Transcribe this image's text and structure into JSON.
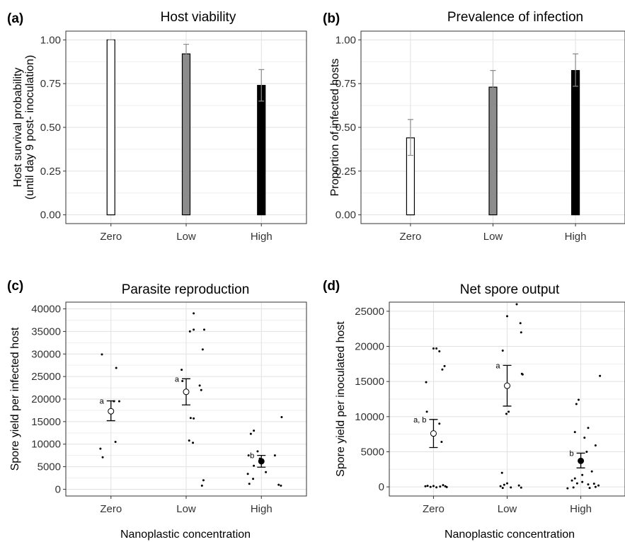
{
  "chart_data": [
    {
      "panel": "(a)",
      "type": "bar",
      "title": "Host viability",
      "ylabel": [
        "Host survival probability",
        "(until day 9 post- inoculation)"
      ],
      "xlabel": "",
      "categories": [
        "Zero",
        "Low",
        "High"
      ],
      "values": [
        1.0,
        0.92,
        0.74
      ],
      "err_low": [
        1.0,
        0.86,
        0.65
      ],
      "err_high": [
        1.0,
        0.975,
        0.83
      ],
      "colors": [
        "#ffffff",
        "#8c8c8c",
        "#000000"
      ],
      "ylim": [
        -0.05,
        1.05
      ],
      "yticks": [
        "0.00",
        "0.25",
        "0.50",
        "0.75",
        "1.00"
      ],
      "grid": true
    },
    {
      "panel": "(b)",
      "type": "bar",
      "title": "Prevalence of infection",
      "ylabel": [
        "Proportion of infected hosts"
      ],
      "xlabel": "",
      "categories": [
        "Zero",
        "Low",
        "High"
      ],
      "values": [
        0.44,
        0.73,
        0.825
      ],
      "err_low": [
        0.34,
        0.63,
        0.735
      ],
      "err_high": [
        0.545,
        0.825,
        0.92
      ],
      "colors": [
        "#ffffff",
        "#8c8c8c",
        "#000000"
      ],
      "ylim": [
        -0.05,
        1.05
      ],
      "yticks": [
        "0.00",
        "0.25",
        "0.50",
        "0.75",
        "1.00"
      ],
      "grid": true
    },
    {
      "panel": "(c)",
      "type": "scatter",
      "title": "Parasite reproduction",
      "ylabel": [
        "Spore yield per infected host"
      ],
      "xlabel": "Nanoplastic concentration",
      "categories": [
        "Zero",
        "Low",
        "High"
      ],
      "ylim": [
        -1500,
        41500
      ],
      "yticks": [
        "0",
        "5000",
        "10000",
        "15000",
        "20000",
        "25000",
        "30000",
        "35000",
        "40000"
      ],
      "means": [
        17300,
        21600,
        6200
      ],
      "err_low": [
        15200,
        18700,
        4900
      ],
      "err_high": [
        19600,
        24500,
        7500
      ],
      "mean_fill": [
        "#ffffff",
        "#ffffff",
        "#000000"
      ],
      "letters": [
        "a",
        "a",
        "b"
      ],
      "points": [
        {
          "x": 0.88,
          "y": 29900
        },
        {
          "x": 1.07,
          "y": 26900
        },
        {
          "x": 1.04,
          "y": 19500
        },
        {
          "x": 1.11,
          "y": 19500
        },
        {
          "x": 1.06,
          "y": 10500
        },
        {
          "x": 0.86,
          "y": 9000
        },
        {
          "x": 0.89,
          "y": 7100
        },
        {
          "x": 2.1,
          "y": 39000
        },
        {
          "x": 2.1,
          "y": 35400
        },
        {
          "x": 2.05,
          "y": 35000
        },
        {
          "x": 2.24,
          "y": 35400
        },
        {
          "x": 2.22,
          "y": 31000
        },
        {
          "x": 1.94,
          "y": 26500
        },
        {
          "x": 1.95,
          "y": 24000
        },
        {
          "x": 2.18,
          "y": 23000
        },
        {
          "x": 2.2,
          "y": 22000
        },
        {
          "x": 2.06,
          "y": 15800
        },
        {
          "x": 2.1,
          "y": 15700
        },
        {
          "x": 2.04,
          "y": 10800
        },
        {
          "x": 2.09,
          "y": 10300
        },
        {
          "x": 2.23,
          "y": 2000
        },
        {
          "x": 2.21,
          "y": 800
        },
        {
          "x": 3.27,
          "y": 16000
        },
        {
          "x": 2.9,
          "y": 13000
        },
        {
          "x": 2.86,
          "y": 12300
        },
        {
          "x": 2.95,
          "y": 8400
        },
        {
          "x": 2.83,
          "y": 7500
        },
        {
          "x": 3.18,
          "y": 7500
        },
        {
          "x": 2.98,
          "y": 6800
        },
        {
          "x": 2.9,
          "y": 5200
        },
        {
          "x": 3.06,
          "y": 3800
        },
        {
          "x": 2.82,
          "y": 3400
        },
        {
          "x": 2.89,
          "y": 2300
        },
        {
          "x": 2.84,
          "y": 1200
        },
        {
          "x": 3.23,
          "y": 1000
        },
        {
          "x": 3.26,
          "y": 800
        }
      ],
      "grid": true
    },
    {
      "panel": "(d)",
      "type": "scatter",
      "title": "Net spore output",
      "ylabel": [
        "Spore yield per inoculated host"
      ],
      "xlabel": "Nanoplastic concentration",
      "categories": [
        "Zero",
        "Low",
        "High"
      ],
      "ylim": [
        -1300,
        26300
      ],
      "yticks": [
        "0",
        "5000",
        "10000",
        "15000",
        "20000",
        "25000"
      ],
      "means": [
        7600,
        14400,
        3700
      ],
      "err_low": [
        5600,
        11500,
        2700
      ],
      "err_high": [
        9600,
        17300,
        4800
      ],
      "mean_fill": [
        "#ffffff",
        "#ffffff",
        "#000000"
      ],
      "letters": [
        "a, b",
        "a",
        "b"
      ],
      "points": [
        {
          "x": 1.0,
          "y": 19700
        },
        {
          "x": 1.04,
          "y": 19700
        },
        {
          "x": 1.08,
          "y": 19300
        },
        {
          "x": 1.15,
          "y": 17200
        },
        {
          "x": 1.12,
          "y": 16700
        },
        {
          "x": 0.9,
          "y": 14900
        },
        {
          "x": 0.91,
          "y": 10700
        },
        {
          "x": 1.08,
          "y": 9000
        },
        {
          "x": 1.11,
          "y": 6400
        },
        {
          "x": 0.89,
          "y": 80
        },
        {
          "x": 0.92,
          "y": 150
        },
        {
          "x": 0.96,
          "y": 0
        },
        {
          "x": 1.0,
          "y": 120
        },
        {
          "x": 1.04,
          "y": -60
        },
        {
          "x": 1.09,
          "y": 50
        },
        {
          "x": 1.13,
          "y": 250
        },
        {
          "x": 1.16,
          "y": 90
        },
        {
          "x": 1.18,
          "y": -30
        },
        {
          "x": 2.13,
          "y": 26000
        },
        {
          "x": 2.0,
          "y": 24300
        },
        {
          "x": 2.18,
          "y": 23300
        },
        {
          "x": 2.19,
          "y": 22000
        },
        {
          "x": 1.94,
          "y": 19400
        },
        {
          "x": 2.21,
          "y": 16000
        },
        {
          "x": 2.2,
          "y": 16100
        },
        {
          "x": 2.02,
          "y": 10700
        },
        {
          "x": 1.99,
          "y": 10400
        },
        {
          "x": 1.93,
          "y": 2000
        },
        {
          "x": 1.91,
          "y": 100
        },
        {
          "x": 1.96,
          "y": 300
        },
        {
          "x": 2.0,
          "y": 500
        },
        {
          "x": 2.05,
          "y": -80
        },
        {
          "x": 2.16,
          "y": 200
        },
        {
          "x": 2.19,
          "y": -100
        },
        {
          "x": 1.94,
          "y": -150
        },
        {
          "x": 3.26,
          "y": 15800
        },
        {
          "x": 2.97,
          "y": 12400
        },
        {
          "x": 2.94,
          "y": 11800
        },
        {
          "x": 3.1,
          "y": 8400
        },
        {
          "x": 2.92,
          "y": 7800
        },
        {
          "x": 3.05,
          "y": 7000
        },
        {
          "x": 3.2,
          "y": 5900
        },
        {
          "x": 3.08,
          "y": 5000
        },
        {
          "x": 3.15,
          "y": 2200
        },
        {
          "x": 3.02,
          "y": 1700
        },
        {
          "x": 2.92,
          "y": 1200
        },
        {
          "x": 2.88,
          "y": 900
        },
        {
          "x": 2.95,
          "y": 500
        },
        {
          "x": 3.02,
          "y": 700
        },
        {
          "x": 3.1,
          "y": 350
        },
        {
          "x": 3.18,
          "y": 450
        },
        {
          "x": 3.24,
          "y": 200
        },
        {
          "x": 2.82,
          "y": -200
        },
        {
          "x": 2.9,
          "y": -80
        },
        {
          "x": 3.12,
          "y": -150
        },
        {
          "x": 3.2,
          "y": 0
        }
      ],
      "grid": true
    }
  ]
}
